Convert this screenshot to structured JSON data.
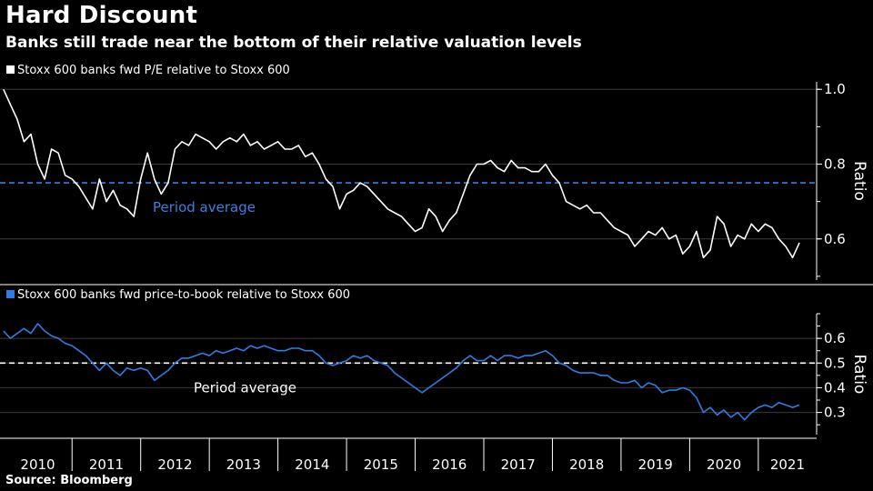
{
  "title": "Hard Discount",
  "subtitle": "Banks still trade near the bottom of their relative valuation levels",
  "source": "Source: Bloomberg",
  "colors": {
    "top_line": "#ffffff",
    "bottom_line": "#2f7de1",
    "top_avg": "#3d7fe0",
    "bottom_avg": "#ffffff",
    "grid": "#3a3a3a",
    "background": "#000000"
  },
  "chart_data": [
    {
      "type": "line",
      "legend": "Stoxx 600 banks fwd P/E relative to Stoxx 600",
      "ylabel": "Ratio",
      "ylim": [
        0.49,
        1.02
      ],
      "yticks": [
        "1.0",
        "0.8",
        "0.6"
      ],
      "ytick_values": [
        1.0,
        0.8,
        0.6
      ],
      "average": 0.75,
      "average_label": "Period average",
      "x": [
        2010.0,
        2010.1,
        2010.2,
        2010.3,
        2010.4,
        2010.5,
        2010.6,
        2010.7,
        2010.8,
        2010.9,
        2011.0,
        2011.1,
        2011.2,
        2011.3,
        2011.4,
        2011.5,
        2011.6,
        2011.7,
        2011.8,
        2011.9,
        2012.0,
        2012.1,
        2012.2,
        2012.3,
        2012.4,
        2012.5,
        2012.6,
        2012.7,
        2012.8,
        2012.9,
        2013.0,
        2013.1,
        2013.2,
        2013.3,
        2013.4,
        2013.5,
        2013.6,
        2013.7,
        2013.8,
        2013.9,
        2014.0,
        2014.1,
        2014.2,
        2014.3,
        2014.4,
        2014.5,
        2014.6,
        2014.7,
        2014.8,
        2014.9,
        2015.0,
        2015.1,
        2015.2,
        2015.3,
        2015.4,
        2015.5,
        2015.6,
        2015.7,
        2015.8,
        2015.9,
        2016.0,
        2016.1,
        2016.2,
        2016.3,
        2016.4,
        2016.5,
        2016.6,
        2016.7,
        2016.8,
        2016.9,
        2017.0,
        2017.1,
        2017.2,
        2017.3,
        2017.4,
        2017.5,
        2017.6,
        2017.7,
        2017.8,
        2017.9,
        2018.0,
        2018.1,
        2018.2,
        2018.3,
        2018.4,
        2018.5,
        2018.6,
        2018.7,
        2018.8,
        2018.9,
        2019.0,
        2019.1,
        2019.2,
        2019.3,
        2019.4,
        2019.5,
        2019.6,
        2019.7,
        2019.8,
        2019.9,
        2020.0,
        2020.1,
        2020.2,
        2020.3,
        2020.4,
        2020.5,
        2020.6,
        2020.7,
        2020.8,
        2020.9,
        2021.0,
        2021.1,
        2021.2,
        2021.3,
        2021.4,
        2021.5,
        2021.6
      ],
      "values": [
        1.0,
        0.96,
        0.92,
        0.86,
        0.88,
        0.8,
        0.76,
        0.84,
        0.83,
        0.77,
        0.76,
        0.74,
        0.71,
        0.68,
        0.76,
        0.7,
        0.73,
        0.69,
        0.68,
        0.66,
        0.76,
        0.83,
        0.76,
        0.72,
        0.75,
        0.84,
        0.86,
        0.85,
        0.88,
        0.87,
        0.86,
        0.84,
        0.86,
        0.87,
        0.86,
        0.88,
        0.85,
        0.86,
        0.84,
        0.85,
        0.86,
        0.84,
        0.84,
        0.85,
        0.82,
        0.83,
        0.8,
        0.76,
        0.74,
        0.68,
        0.72,
        0.73,
        0.75,
        0.74,
        0.72,
        0.7,
        0.68,
        0.67,
        0.66,
        0.64,
        0.62,
        0.63,
        0.68,
        0.66,
        0.62,
        0.65,
        0.67,
        0.72,
        0.77,
        0.8,
        0.8,
        0.81,
        0.79,
        0.78,
        0.81,
        0.79,
        0.79,
        0.78,
        0.78,
        0.8,
        0.77,
        0.75,
        0.7,
        0.69,
        0.68,
        0.69,
        0.67,
        0.67,
        0.65,
        0.63,
        0.62,
        0.61,
        0.58,
        0.6,
        0.62,
        0.61,
        0.63,
        0.6,
        0.61,
        0.56,
        0.58,
        0.62,
        0.55,
        0.57,
        0.66,
        0.64,
        0.58,
        0.61,
        0.6,
        0.64,
        0.62,
        0.64,
        0.63,
        0.6,
        0.58,
        0.55,
        0.59
      ]
    },
    {
      "type": "line",
      "legend": "Stoxx 600 banks fwd price-to-book relative to Stoxx 600",
      "ylabel": "Ratio",
      "ylim": [
        0.21,
        0.7
      ],
      "yticks": [
        "0.6",
        "0.5",
        "0.4",
        "0.3"
      ],
      "ytick_values": [
        0.6,
        0.5,
        0.4,
        0.3
      ],
      "average": 0.5,
      "average_label": "Period average",
      "x": [
        2010.0,
        2010.1,
        2010.2,
        2010.3,
        2010.4,
        2010.5,
        2010.6,
        2010.7,
        2010.8,
        2010.9,
        2011.0,
        2011.1,
        2011.2,
        2011.3,
        2011.4,
        2011.5,
        2011.6,
        2011.7,
        2011.8,
        2011.9,
        2012.0,
        2012.1,
        2012.2,
        2012.3,
        2012.4,
        2012.5,
        2012.6,
        2012.7,
        2012.8,
        2012.9,
        2013.0,
        2013.1,
        2013.2,
        2013.3,
        2013.4,
        2013.5,
        2013.6,
        2013.7,
        2013.8,
        2013.9,
        2014.0,
        2014.1,
        2014.2,
        2014.3,
        2014.4,
        2014.5,
        2014.6,
        2014.7,
        2014.8,
        2014.9,
        2015.0,
        2015.1,
        2015.2,
        2015.3,
        2015.4,
        2015.5,
        2015.6,
        2015.7,
        2015.8,
        2015.9,
        2016.0,
        2016.1,
        2016.2,
        2016.3,
        2016.4,
        2016.5,
        2016.6,
        2016.7,
        2016.8,
        2016.9,
        2017.0,
        2017.1,
        2017.2,
        2017.3,
        2017.4,
        2017.5,
        2017.6,
        2017.7,
        2017.8,
        2017.9,
        2018.0,
        2018.1,
        2018.2,
        2018.3,
        2018.4,
        2018.5,
        2018.6,
        2018.7,
        2018.8,
        2018.9,
        2019.0,
        2019.1,
        2019.2,
        2019.3,
        2019.4,
        2019.5,
        2019.6,
        2019.7,
        2019.8,
        2019.9,
        2020.0,
        2020.1,
        2020.2,
        2020.3,
        2020.4,
        2020.5,
        2020.6,
        2020.7,
        2020.8,
        2020.9,
        2021.0,
        2021.1,
        2021.2,
        2021.3,
        2021.4,
        2021.5,
        2021.6
      ],
      "values": [
        0.63,
        0.6,
        0.62,
        0.64,
        0.62,
        0.66,
        0.63,
        0.61,
        0.6,
        0.58,
        0.57,
        0.55,
        0.53,
        0.5,
        0.47,
        0.5,
        0.47,
        0.45,
        0.48,
        0.47,
        0.48,
        0.47,
        0.43,
        0.45,
        0.47,
        0.5,
        0.52,
        0.52,
        0.53,
        0.54,
        0.53,
        0.55,
        0.54,
        0.55,
        0.56,
        0.55,
        0.57,
        0.56,
        0.57,
        0.56,
        0.55,
        0.55,
        0.56,
        0.56,
        0.55,
        0.55,
        0.53,
        0.5,
        0.49,
        0.5,
        0.51,
        0.53,
        0.52,
        0.53,
        0.51,
        0.5,
        0.49,
        0.46,
        0.44,
        0.42,
        0.4,
        0.38,
        0.4,
        0.42,
        0.44,
        0.46,
        0.48,
        0.51,
        0.53,
        0.51,
        0.51,
        0.53,
        0.51,
        0.53,
        0.53,
        0.52,
        0.53,
        0.53,
        0.54,
        0.55,
        0.53,
        0.5,
        0.49,
        0.47,
        0.46,
        0.46,
        0.46,
        0.45,
        0.45,
        0.43,
        0.42,
        0.42,
        0.43,
        0.4,
        0.42,
        0.41,
        0.38,
        0.39,
        0.39,
        0.4,
        0.39,
        0.36,
        0.3,
        0.32,
        0.29,
        0.31,
        0.28,
        0.3,
        0.27,
        0.3,
        0.32,
        0.33,
        0.32,
        0.34,
        0.33,
        0.32,
        0.33
      ]
    }
  ],
  "x_axis": {
    "years": [
      "2010",
      "2011",
      "2012",
      "2013",
      "2014",
      "2015",
      "2016",
      "2017",
      "2018",
      "2019",
      "2020",
      "2021"
    ],
    "range": [
      2009.95,
      2021.85
    ]
  }
}
